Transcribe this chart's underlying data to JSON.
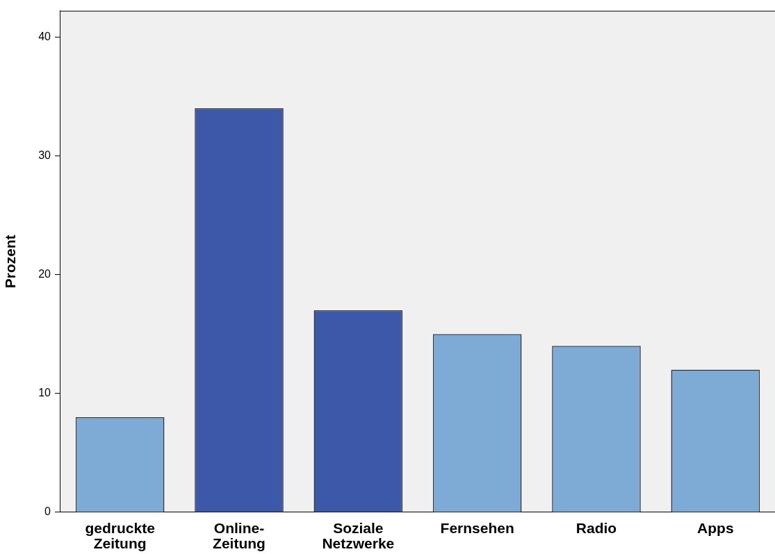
{
  "chart_data": {
    "type": "bar",
    "ylabel": "Prozent",
    "categories": [
      "gedruckte Zeitung",
      "Online-Zeitung",
      "Soziale Netzwerke",
      "Fernsehen",
      "Radio",
      "Apps"
    ],
    "values": [
      8,
      34,
      17,
      15,
      14,
      12
    ],
    "colors": [
      "#7eaad6",
      "#3d57a9",
      "#3d57a9",
      "#7eaad6",
      "#7eaad6",
      "#7eaad6"
    ],
    "ylim": [
      0,
      42.2
    ],
    "yticks": [
      0,
      10,
      20,
      30,
      40
    ],
    "grid": false,
    "legend": false
  }
}
